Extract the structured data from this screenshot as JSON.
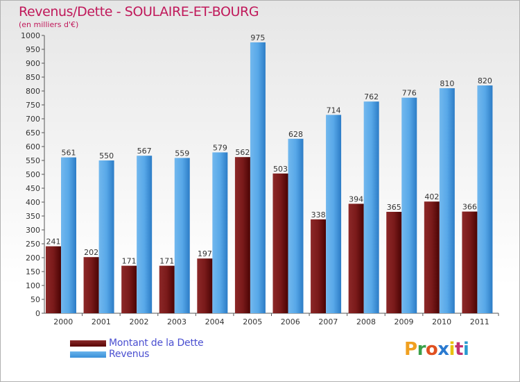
{
  "header": {
    "title": "Revenus/Dette - SOULAIRE-ET-BOURG",
    "subtitle": "(en milliers d'€)"
  },
  "chart_data": {
    "type": "bar",
    "title": "Revenus/Dette - SOULAIRE-ET-BOURG",
    "ylabel": "(en milliers d'€)",
    "xlabel": "",
    "ylim": [
      0,
      1000
    ],
    "ytick_step": 50,
    "grid": false,
    "categories": [
      "2000",
      "2001",
      "2002",
      "2003",
      "2004",
      "2005",
      "2006",
      "2007",
      "2008",
      "2009",
      "2010",
      "2011"
    ],
    "series": [
      {
        "name": "Montant de la Dette",
        "color": "#6b1010",
        "values": [
          241,
          202,
          171,
          171,
          197,
          562,
          503,
          338,
          394,
          365,
          402,
          366
        ]
      },
      {
        "name": "Revenus",
        "color": "#4aa3e6",
        "values": [
          561,
          550,
          567,
          559,
          579,
          975,
          628,
          714,
          762,
          776,
          810,
          820
        ]
      }
    ]
  },
  "legend": {
    "items": [
      {
        "label": "Montant de la Dette"
      },
      {
        "label": "Revenus"
      }
    ]
  },
  "logo": {
    "letters": [
      "P",
      "r",
      "o",
      "x",
      "i",
      "t",
      "i"
    ],
    "colors": [
      "#f0a020",
      "#3aa04a",
      "#e05020",
      "#2a7ad0",
      "#e8c010",
      "#c03070",
      "#2a9ad0"
    ]
  }
}
